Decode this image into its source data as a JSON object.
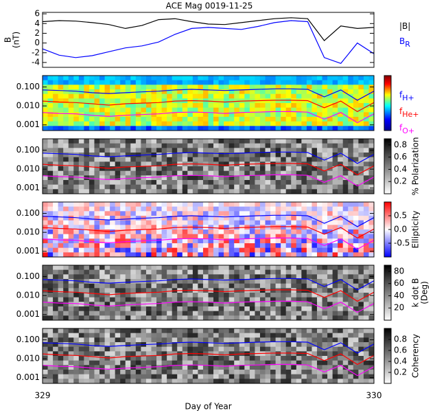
{
  "chart_data": [
    {
      "type": "line",
      "title": "ACE Mag 0019-11-25",
      "ylabel": [
        "B",
        "(nT)"
      ],
      "x": [
        329,
        329.05,
        329.1,
        329.15,
        329.2,
        329.25,
        329.3,
        329.35,
        329.4,
        329.45,
        329.5,
        329.55,
        329.6,
        329.65,
        329.7,
        329.75,
        329.8,
        329.85,
        329.9,
        329.95,
        330
      ],
      "xlim": [
        329,
        330
      ],
      "ylim": [
        -5,
        6.3
      ],
      "yticks": [
        -4,
        -2,
        0,
        2,
        4,
        6
      ],
      "series": [
        {
          "name": "|B|",
          "color": "#000000",
          "values": [
            4.4,
            4.6,
            4.5,
            4.2,
            3.8,
            3.0,
            3.6,
            4.8,
            5.0,
            4.4,
            3.9,
            3.8,
            4.2,
            4.6,
            5.0,
            5.2,
            5.0,
            0.5,
            3.5,
            3.0,
            3.2
          ]
        },
        {
          "name": "B",
          "subscript": "R",
          "color": "#0000ff",
          "values": [
            -1.2,
            -2.5,
            -3.0,
            -2.6,
            -1.8,
            -1.0,
            -0.6,
            0.2,
            1.8,
            3.0,
            3.2,
            3.0,
            2.8,
            3.4,
            4.2,
            4.6,
            4.4,
            -3.0,
            -4.2,
            0.0,
            -2.2
          ]
        }
      ]
    },
    {
      "type": "spectrogram",
      "colormap": "jet",
      "log": true,
      "xlim": [
        329,
        330
      ],
      "ylim": [
        0.0005,
        0.4
      ],
      "yticks": [
        {
          "value": 0.001,
          "label": "0.001"
        },
        {
          "value": 0.01,
          "label": "0.010"
        },
        {
          "value": 0.1,
          "label": "0.100"
        }
      ],
      "series": [
        {
          "name": "f",
          "subscript": "H+",
          "color": "#0000ff",
          "values": [
            0.07,
            0.065,
            0.06,
            0.05,
            0.045,
            0.05,
            0.055,
            0.06,
            0.07,
            0.075,
            0.07,
            0.065,
            0.07,
            0.075,
            0.08,
            0.08,
            0.075,
            0.03,
            0.07,
            0.02,
            0.06
          ]
        },
        {
          "name": "f",
          "subscript": "He+",
          "color": "#ff0000",
          "values": [
            0.018,
            0.016,
            0.015,
            0.013,
            0.011,
            0.013,
            0.014,
            0.015,
            0.018,
            0.019,
            0.018,
            0.016,
            0.018,
            0.019,
            0.02,
            0.02,
            0.019,
            0.008,
            0.018,
            0.005,
            0.015
          ]
        },
        {
          "name": "f",
          "subscript": "O+",
          "color": "#ff00ff",
          "values": [
            0.0045,
            0.004,
            0.0038,
            0.0032,
            0.0028,
            0.0032,
            0.0035,
            0.0038,
            0.0045,
            0.0047,
            0.0045,
            0.004,
            0.0045,
            0.0047,
            0.005,
            0.005,
            0.0047,
            0.002,
            0.0045,
            0.0013,
            0.0038
          ]
        }
      ]
    },
    {
      "type": "spectrogram",
      "colormap": "gray",
      "log": true,
      "xlim": [
        329,
        330
      ],
      "ylim": [
        0.0005,
        0.4
      ],
      "yticks": [
        {
          "value": 0.001,
          "label": "0.001"
        },
        {
          "value": 0.01,
          "label": "0.010"
        },
        {
          "value": 0.1,
          "label": "0.100"
        }
      ],
      "clim": [
        0,
        0.9
      ],
      "cticks": [
        0.2,
        0.4,
        0.6,
        0.8
      ],
      "clabel": [
        "% Polarization"
      ],
      "series": [
        {
          "color": "#0000ff",
          "values": [
            0.07,
            0.065,
            0.06,
            0.05,
            0.045,
            0.05,
            0.055,
            0.06,
            0.07,
            0.075,
            0.07,
            0.065,
            0.07,
            0.075,
            0.08,
            0.08,
            0.075,
            0.03,
            0.07,
            0.02,
            0.06
          ]
        },
        {
          "color": "#ff0000",
          "values": [
            0.018,
            0.016,
            0.015,
            0.013,
            0.011,
            0.013,
            0.014,
            0.015,
            0.018,
            0.019,
            0.018,
            0.016,
            0.018,
            0.019,
            0.02,
            0.02,
            0.019,
            0.008,
            0.018,
            0.005,
            0.015
          ]
        },
        {
          "color": "#ff00ff",
          "values": [
            0.0045,
            0.004,
            0.0038,
            0.0032,
            0.0028,
            0.0032,
            0.0035,
            0.0038,
            0.0045,
            0.0047,
            0.0045,
            0.004,
            0.0045,
            0.0047,
            0.005,
            0.005,
            0.0047,
            0.002,
            0.0045,
            0.0013,
            0.0038
          ]
        }
      ]
    },
    {
      "type": "spectrogram",
      "colormap": "bwr",
      "log": true,
      "xlim": [
        329,
        330
      ],
      "ylim": [
        0.0005,
        0.4
      ],
      "yticks": [
        {
          "value": 0.001,
          "label": "0.001"
        },
        {
          "value": 0.01,
          "label": "0.010"
        },
        {
          "value": 0.1,
          "label": "0.100"
        }
      ],
      "clim": [
        -1,
        1
      ],
      "cticks": [
        -0.5,
        {
          "value": 0,
          "label": "0.0"
        },
        0.5
      ],
      "clabel": [
        "Ellipticity"
      ],
      "series": [
        {
          "color": "#0000ff",
          "values": [
            0.07,
            0.065,
            0.06,
            0.05,
            0.045,
            0.05,
            0.055,
            0.06,
            0.07,
            0.075,
            0.07,
            0.065,
            0.07,
            0.075,
            0.08,
            0.08,
            0.075,
            0.03,
            0.07,
            0.02,
            0.06
          ]
        },
        {
          "color": "#ff0000",
          "values": [
            0.018,
            0.016,
            0.015,
            0.013,
            0.011,
            0.013,
            0.014,
            0.015,
            0.018,
            0.019,
            0.018,
            0.016,
            0.018,
            0.019,
            0.02,
            0.02,
            0.019,
            0.008,
            0.018,
            0.005,
            0.015
          ]
        },
        {
          "color": "#ff00ff",
          "values": [
            0.0045,
            0.004,
            0.0038,
            0.0032,
            0.0028,
            0.0032,
            0.0035,
            0.0038,
            0.0045,
            0.0047,
            0.0045,
            0.004,
            0.0045,
            0.0047,
            0.005,
            0.005,
            0.0047,
            0.002,
            0.0045,
            0.0013,
            0.0038
          ]
        }
      ]
    },
    {
      "type": "spectrogram",
      "colormap": "gray",
      "log": true,
      "xlim": [
        329,
        330
      ],
      "ylim": [
        0.0005,
        0.4
      ],
      "yticks": [
        {
          "value": 0.001,
          "label": "0.001"
        },
        {
          "value": 0.01,
          "label": "0.010"
        },
        {
          "value": 0.1,
          "label": "0.100"
        }
      ],
      "clim": [
        0,
        90
      ],
      "cticks": [
        20,
        40,
        60,
        80
      ],
      "clabel": [
        "k dot B",
        "(Deg)"
      ],
      "series": [
        {
          "color": "#0000ff",
          "values": [
            0.07,
            0.065,
            0.06,
            0.05,
            0.045,
            0.05,
            0.055,
            0.06,
            0.07,
            0.075,
            0.07,
            0.065,
            0.07,
            0.075,
            0.08,
            0.08,
            0.075,
            0.03,
            0.07,
            0.02,
            0.06
          ]
        },
        {
          "color": "#ff0000",
          "values": [
            0.018,
            0.016,
            0.015,
            0.013,
            0.011,
            0.013,
            0.014,
            0.015,
            0.018,
            0.019,
            0.018,
            0.016,
            0.018,
            0.019,
            0.02,
            0.02,
            0.019,
            0.008,
            0.018,
            0.005,
            0.015
          ]
        },
        {
          "color": "#ff00ff",
          "values": [
            0.0045,
            0.004,
            0.0038,
            0.0032,
            0.0028,
            0.0032,
            0.0035,
            0.0038,
            0.0045,
            0.0047,
            0.0045,
            0.004,
            0.0045,
            0.0047,
            0.005,
            0.005,
            0.0047,
            0.002,
            0.0045,
            0.0013,
            0.0038
          ]
        }
      ]
    },
    {
      "type": "spectrogram",
      "colormap": "gray",
      "log": true,
      "xlim": [
        329,
        330
      ],
      "ylim": [
        0.0005,
        0.4
      ],
      "yticks": [
        {
          "value": 0.001,
          "label": "0.001"
        },
        {
          "value": 0.01,
          "label": "0.010"
        },
        {
          "value": 0.1,
          "label": "0.100"
        }
      ],
      "clim": [
        0,
        1
      ],
      "cticks": [
        0.2,
        0.4,
        0.6,
        0.8
      ],
      "clabel": [
        "Coherency"
      ],
      "xticks": [
        329,
        330
      ],
      "xlabel": "Day of Year",
      "series": [
        {
          "color": "#0000ff",
          "values": [
            0.07,
            0.065,
            0.06,
            0.05,
            0.045,
            0.05,
            0.055,
            0.06,
            0.07,
            0.075,
            0.07,
            0.065,
            0.07,
            0.075,
            0.08,
            0.08,
            0.075,
            0.03,
            0.07,
            0.02,
            0.06
          ]
        },
        {
          "color": "#ff0000",
          "values": [
            0.018,
            0.016,
            0.015,
            0.013,
            0.011,
            0.013,
            0.014,
            0.015,
            0.018,
            0.019,
            0.018,
            0.016,
            0.018,
            0.019,
            0.02,
            0.02,
            0.019,
            0.008,
            0.018,
            0.005,
            0.015
          ]
        },
        {
          "color": "#ff00ff",
          "values": [
            0.0045,
            0.004,
            0.0038,
            0.0032,
            0.0028,
            0.0032,
            0.0035,
            0.0038,
            0.0045,
            0.0047,
            0.0045,
            0.004,
            0.0045,
            0.0047,
            0.005,
            0.005,
            0.0047,
            0.002,
            0.0045,
            0.0013,
            0.0038
          ]
        }
      ]
    }
  ]
}
